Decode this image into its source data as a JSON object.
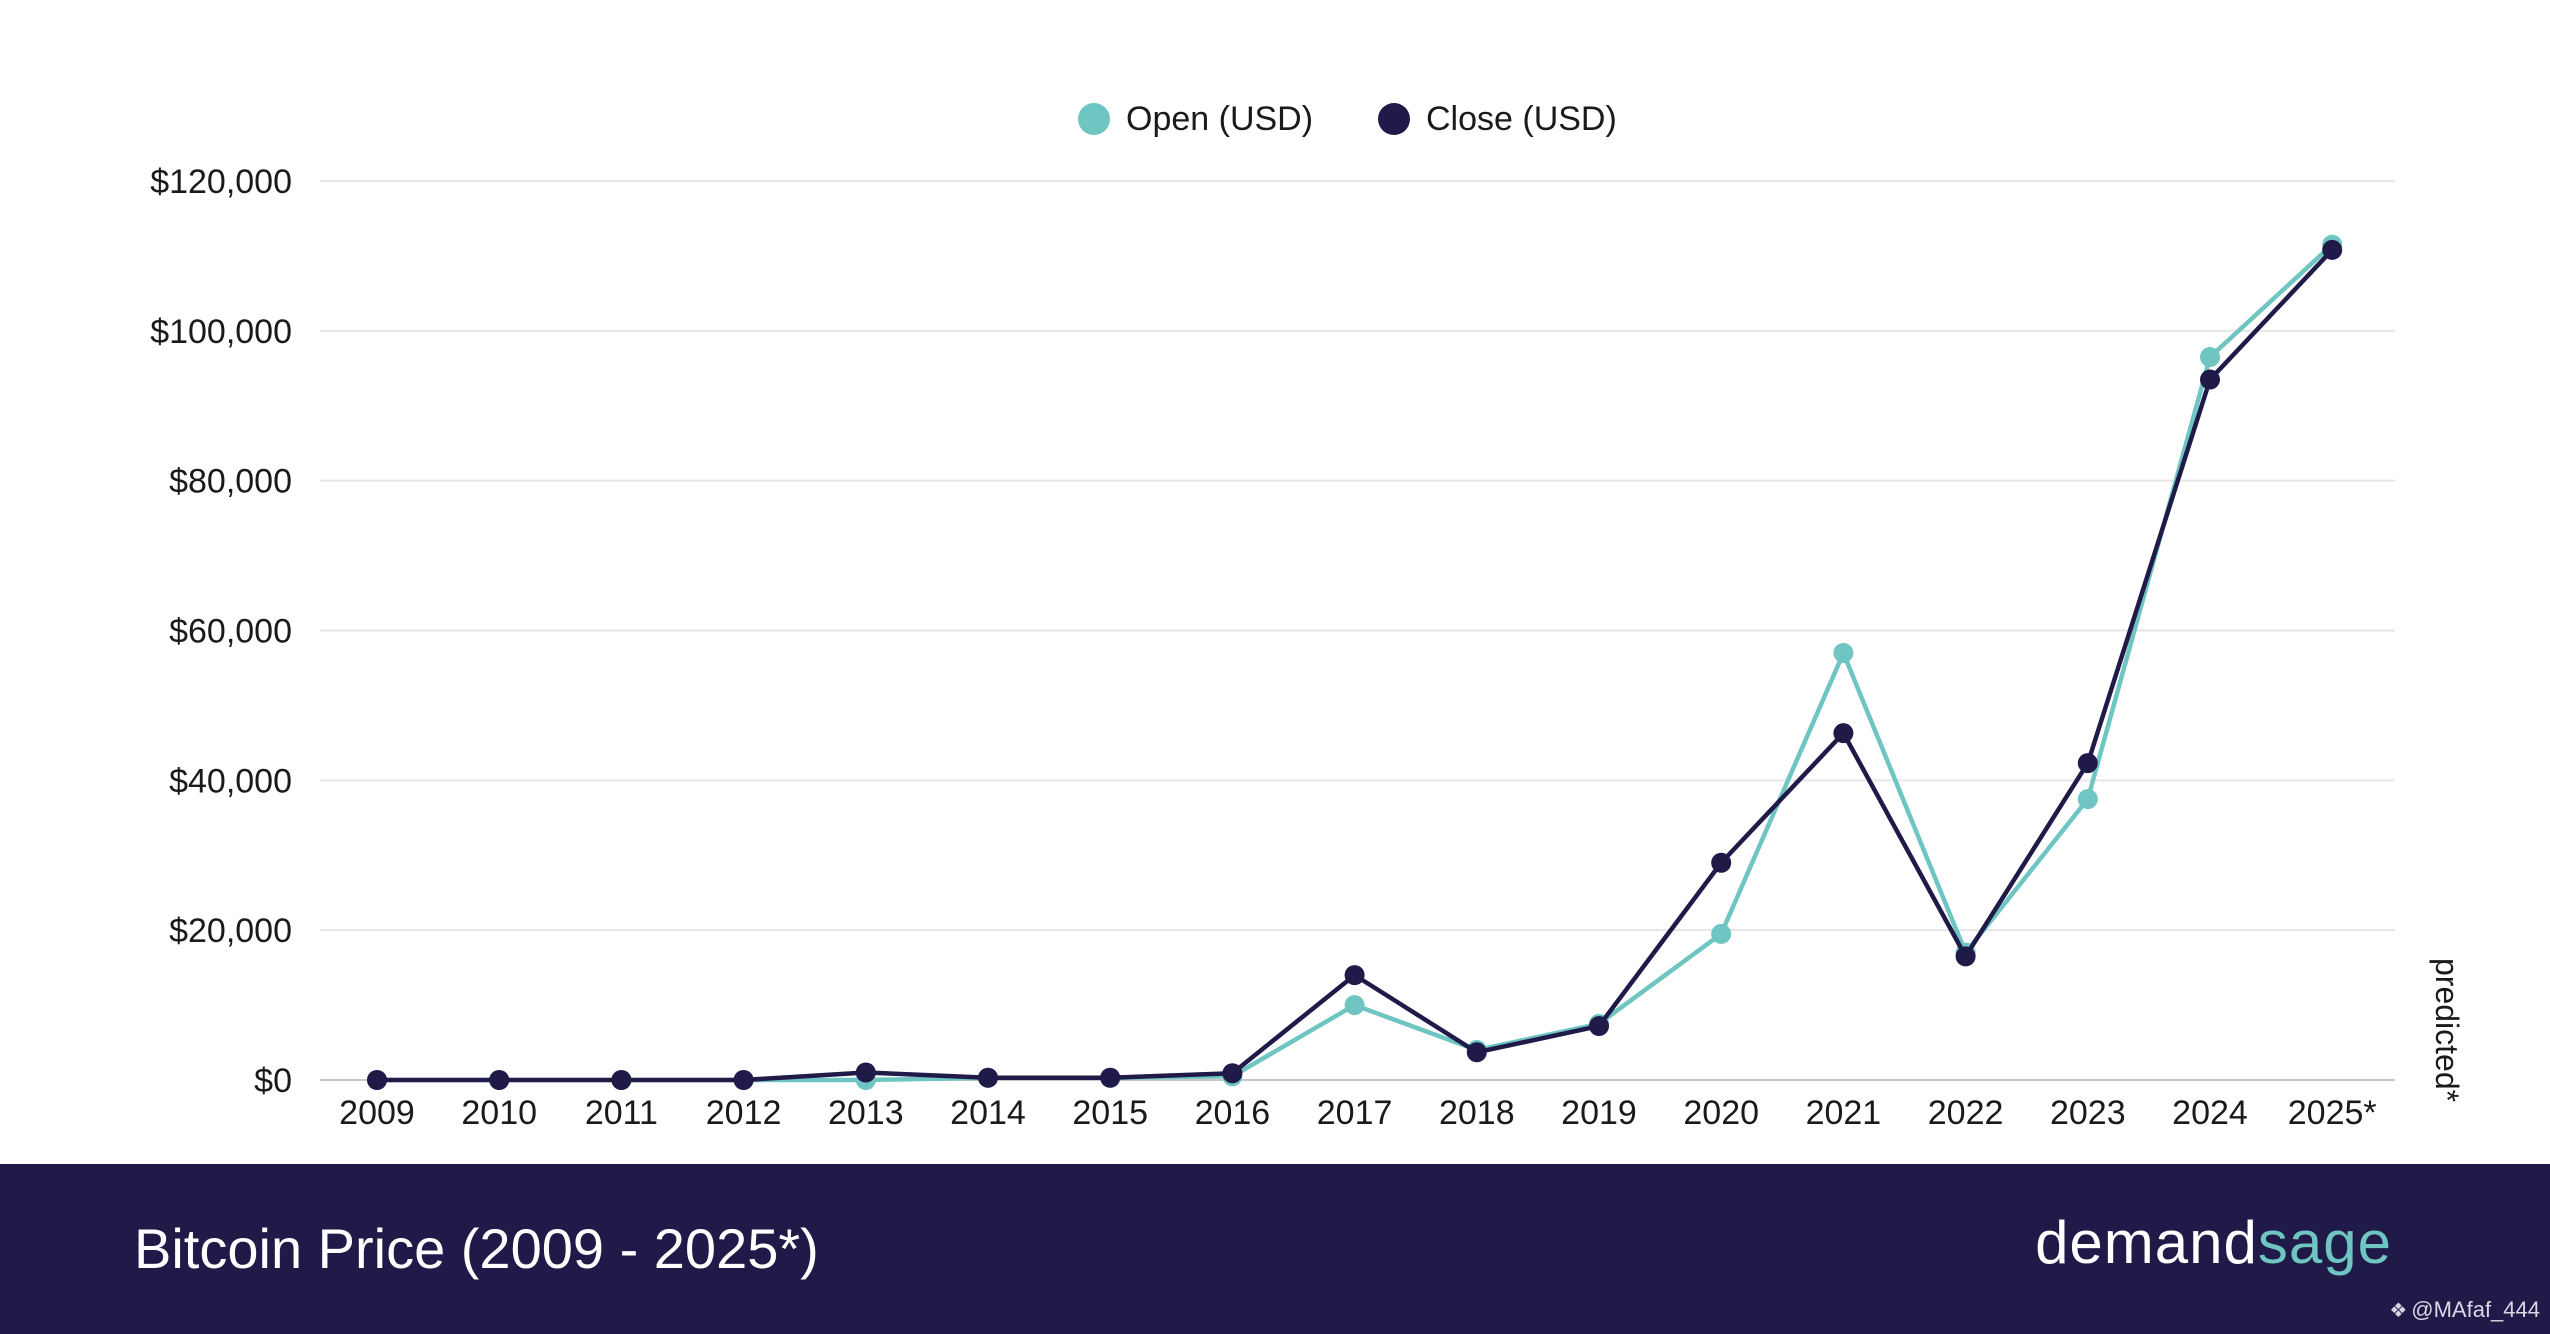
{
  "chart_data": {
    "type": "line",
    "categories": [
      "2009",
      "2010",
      "2011",
      "2012",
      "2013",
      "2014",
      "2015",
      "2016",
      "2017",
      "2018",
      "2019",
      "2020",
      "2021",
      "2022",
      "2023",
      "2024",
      "2025*"
    ],
    "series": [
      {
        "name": "Open (USD)",
        "color": "#6ec5c1",
        "values": [
          0,
          0,
          0,
          0,
          0,
          300,
          300,
          500,
          10000,
          4000,
          7500,
          19500,
          57000,
          17000,
          37500,
          96500,
          111500
        ]
      },
      {
        "name": "Close (USD)",
        "color": "#1f1a48",
        "values": [
          0,
          0,
          0,
          0,
          1000,
          300,
          300,
          900,
          14000,
          3700,
          7200,
          29000,
          46300,
          16500,
          42300,
          93500,
          110800
        ]
      }
    ],
    "yticks": [
      "$120,000",
      "$100,000",
      "$80,000",
      "$60,000",
      "$40,000",
      "$20,000",
      "$0"
    ],
    "ylim": [
      0,
      120000
    ],
    "grid": true,
    "legend_position": "top",
    "side_note": "predicted*"
  },
  "footer": {
    "title": "Bitcoin Price (2009 - 2025*)",
    "brand_part1": "demand",
    "brand_part2": "sage"
  },
  "watermark": {
    "icon": "diamond-logo-icon",
    "text": "@MAfaf_444"
  }
}
